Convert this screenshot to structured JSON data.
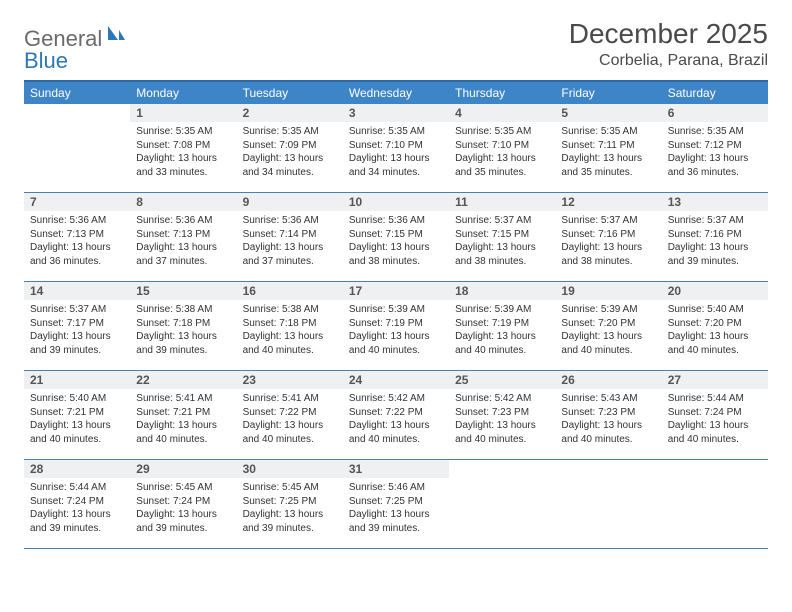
{
  "logo": {
    "general": "General",
    "blue": "Blue"
  },
  "title": "December 2025",
  "location": "Corbelia, Parana, Brazil",
  "colors": {
    "header_bg": "#3d85c6",
    "header_border_top": "#2d6aa3",
    "row_border": "#4a7fb0",
    "daynum_bg": "#eef0f2",
    "text_dark": "#4a4a4a",
    "logo_gray": "#6b6b6b",
    "logo_blue": "#2d78b8"
  },
  "weekdays": [
    "Sunday",
    "Monday",
    "Tuesday",
    "Wednesday",
    "Thursday",
    "Friday",
    "Saturday"
  ],
  "grid": [
    [
      null,
      {
        "n": "1",
        "sr": "5:35 AM",
        "ss": "7:08 PM",
        "dl": "13 hours and 33 minutes."
      },
      {
        "n": "2",
        "sr": "5:35 AM",
        "ss": "7:09 PM",
        "dl": "13 hours and 34 minutes."
      },
      {
        "n": "3",
        "sr": "5:35 AM",
        "ss": "7:10 PM",
        "dl": "13 hours and 34 minutes."
      },
      {
        "n": "4",
        "sr": "5:35 AM",
        "ss": "7:10 PM",
        "dl": "13 hours and 35 minutes."
      },
      {
        "n": "5",
        "sr": "5:35 AM",
        "ss": "7:11 PM",
        "dl": "13 hours and 35 minutes."
      },
      {
        "n": "6",
        "sr": "5:35 AM",
        "ss": "7:12 PM",
        "dl": "13 hours and 36 minutes."
      }
    ],
    [
      {
        "n": "7",
        "sr": "5:36 AM",
        "ss": "7:13 PM",
        "dl": "13 hours and 36 minutes."
      },
      {
        "n": "8",
        "sr": "5:36 AM",
        "ss": "7:13 PM",
        "dl": "13 hours and 37 minutes."
      },
      {
        "n": "9",
        "sr": "5:36 AM",
        "ss": "7:14 PM",
        "dl": "13 hours and 37 minutes."
      },
      {
        "n": "10",
        "sr": "5:36 AM",
        "ss": "7:15 PM",
        "dl": "13 hours and 38 minutes."
      },
      {
        "n": "11",
        "sr": "5:37 AM",
        "ss": "7:15 PM",
        "dl": "13 hours and 38 minutes."
      },
      {
        "n": "12",
        "sr": "5:37 AM",
        "ss": "7:16 PM",
        "dl": "13 hours and 38 minutes."
      },
      {
        "n": "13",
        "sr": "5:37 AM",
        "ss": "7:16 PM",
        "dl": "13 hours and 39 minutes."
      }
    ],
    [
      {
        "n": "14",
        "sr": "5:37 AM",
        "ss": "7:17 PM",
        "dl": "13 hours and 39 minutes."
      },
      {
        "n": "15",
        "sr": "5:38 AM",
        "ss": "7:18 PM",
        "dl": "13 hours and 39 minutes."
      },
      {
        "n": "16",
        "sr": "5:38 AM",
        "ss": "7:18 PM",
        "dl": "13 hours and 40 minutes."
      },
      {
        "n": "17",
        "sr": "5:39 AM",
        "ss": "7:19 PM",
        "dl": "13 hours and 40 minutes."
      },
      {
        "n": "18",
        "sr": "5:39 AM",
        "ss": "7:19 PM",
        "dl": "13 hours and 40 minutes."
      },
      {
        "n": "19",
        "sr": "5:39 AM",
        "ss": "7:20 PM",
        "dl": "13 hours and 40 minutes."
      },
      {
        "n": "20",
        "sr": "5:40 AM",
        "ss": "7:20 PM",
        "dl": "13 hours and 40 minutes."
      }
    ],
    [
      {
        "n": "21",
        "sr": "5:40 AM",
        "ss": "7:21 PM",
        "dl": "13 hours and 40 minutes."
      },
      {
        "n": "22",
        "sr": "5:41 AM",
        "ss": "7:21 PM",
        "dl": "13 hours and 40 minutes."
      },
      {
        "n": "23",
        "sr": "5:41 AM",
        "ss": "7:22 PM",
        "dl": "13 hours and 40 minutes."
      },
      {
        "n": "24",
        "sr": "5:42 AM",
        "ss": "7:22 PM",
        "dl": "13 hours and 40 minutes."
      },
      {
        "n": "25",
        "sr": "5:42 AM",
        "ss": "7:23 PM",
        "dl": "13 hours and 40 minutes."
      },
      {
        "n": "26",
        "sr": "5:43 AM",
        "ss": "7:23 PM",
        "dl": "13 hours and 40 minutes."
      },
      {
        "n": "27",
        "sr": "5:44 AM",
        "ss": "7:24 PM",
        "dl": "13 hours and 40 minutes."
      }
    ],
    [
      {
        "n": "28",
        "sr": "5:44 AM",
        "ss": "7:24 PM",
        "dl": "13 hours and 39 minutes."
      },
      {
        "n": "29",
        "sr": "5:45 AM",
        "ss": "7:24 PM",
        "dl": "13 hours and 39 minutes."
      },
      {
        "n": "30",
        "sr": "5:45 AM",
        "ss": "7:25 PM",
        "dl": "13 hours and 39 minutes."
      },
      {
        "n": "31",
        "sr": "5:46 AM",
        "ss": "7:25 PM",
        "dl": "13 hours and 39 minutes."
      },
      null,
      null,
      null
    ]
  ],
  "labels": {
    "sunrise": "Sunrise:",
    "sunset": "Sunset:",
    "daylight": "Daylight:"
  }
}
